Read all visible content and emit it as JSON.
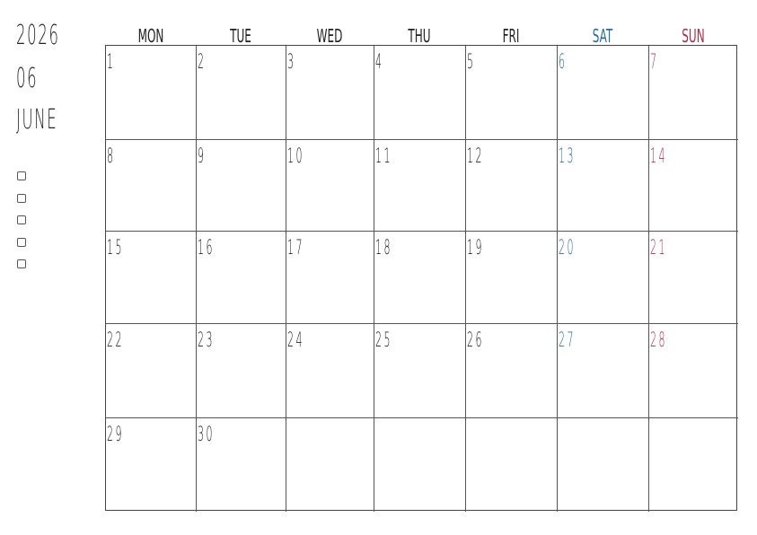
{
  "header": {
    "year": "2026",
    "month_num": "06",
    "month_name": "JUNE"
  },
  "checkbox_count": 5,
  "colors": {
    "saturday": "#2a6b9a",
    "sunday": "#a8304a",
    "text": "#222222"
  },
  "weekdays": [
    "MON",
    "TUE",
    "WED",
    "THU",
    "FRI",
    "SAT",
    "SUN"
  ],
  "weeks": [
    [
      "1",
      "2",
      "3",
      "4",
      "5",
      "6",
      "7"
    ],
    [
      "8",
      "9",
      "10",
      "11",
      "12",
      "13",
      "14"
    ],
    [
      "15",
      "16",
      "17",
      "18",
      "19",
      "20",
      "21"
    ],
    [
      "22",
      "23",
      "24",
      "25",
      "26",
      "27",
      "28"
    ],
    [
      "29",
      "30",
      "",
      "",
      "",
      "",
      ""
    ]
  ]
}
